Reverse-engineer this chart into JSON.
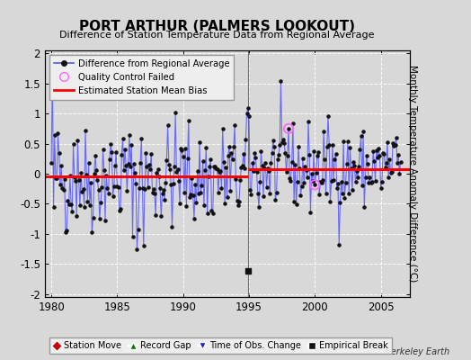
{
  "title": "PORT ARTHUR (PALMERS LOOKOUT)",
  "subtitle": "Difference of Station Temperature Data from Regional Average",
  "ylabel": "Monthly Temperature Anomaly Difference (°C)",
  "xlim": [
    1979.5,
    2007.2
  ],
  "ylim": [
    -2.05,
    2.05
  ],
  "yticks": [
    -2,
    -1.5,
    -1,
    -0.5,
    0,
    0.5,
    1,
    1.5,
    2
  ],
  "xticks": [
    1980,
    1985,
    1990,
    1995,
    2000,
    2005
  ],
  "bias_line_y_before": -0.05,
  "bias_line_y_after": 0.07,
  "bias_change_x": 1994.9,
  "vertical_line_x": 1994.9,
  "empirical_break_x": 1994.9,
  "empirical_break_y": -1.62,
  "background_color": "#d8d8d8",
  "plot_bg_color": "#d8d8d8",
  "line_color": "#5555ff",
  "dot_color": "#111111",
  "bias_color": "#ff0000",
  "qc_fail_color": "#ff66ff",
  "station_move_color": "#cc0000",
  "record_gap_color": "#007700",
  "obs_change_color": "#2222cc",
  "empirical_break_color": "#111111",
  "berkeley_earth_text": "Berkeley Earth",
  "seed": 42
}
